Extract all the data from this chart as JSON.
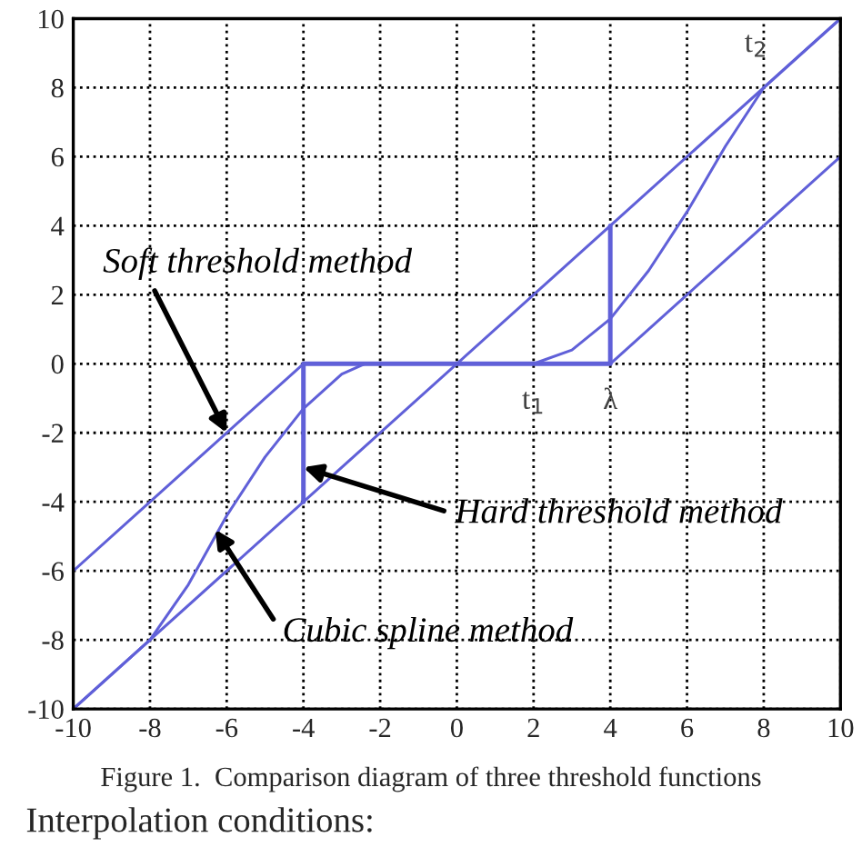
{
  "chart_data": {
    "type": "line",
    "series": [
      {
        "color": "#6060d8",
        "x": [
          -10,
          10
        ],
        "values": [
          -10,
          10
        ]
      },
      {
        "color": "#6060d8",
        "x": [
          -10,
          -4,
          0,
          4,
          10
        ],
        "values": [
          -6,
          0,
          null,
          0,
          6
        ]
      },
      {
        "color": "#6060d8",
        "x": [
          -4,
          -4,
          4,
          4
        ],
        "values": [
          -4,
          0,
          0,
          4
        ]
      },
      {
        "color": "#6060d8",
        "x": [
          -10,
          -8,
          -7,
          -6,
          -5,
          -4,
          -3,
          -2.4,
          2,
          3,
          4,
          5,
          6,
          7,
          8,
          9,
          10
        ],
        "values": [
          -10,
          -8,
          -6.4,
          -4.4,
          -2.7,
          -1.3,
          -0.3,
          0,
          0,
          0.4,
          1.3,
          2.7,
          4.4,
          6.3,
          8,
          9,
          10
        ]
      }
    ],
    "xlim": [
      -10,
      10
    ],
    "ylim": [
      -10,
      10
    ],
    "xticks": [
      -10,
      -8,
      -6,
      -4,
      -2,
      0,
      2,
      4,
      6,
      8,
      10
    ],
    "yticks": [
      -10,
      -8,
      -6,
      -4,
      -2,
      0,
      2,
      4,
      6,
      8,
      10
    ],
    "grid": true,
    "legend": false,
    "marker": "none",
    "line_style": "solid",
    "annotations": [
      {
        "text": "Soft threshold method",
        "x": -6,
        "y": -2
      },
      {
        "text": "Hard threshold method",
        "x": -4,
        "y": -3
      },
      {
        "text": "Cubic spline method",
        "x": -6.3,
        "y": -4.8
      },
      {
        "text": "t$_{1}$",
        "x": 2,
        "y": 0
      },
      {
        "text": "λ",
        "x": 4,
        "y": 0
      },
      {
        "text": "t$_{2}$",
        "x": 8,
        "y": 8
      },
      "Figure 1.  Comparison diagram of three threshold functions",
      "Interpolation conditions:"
    ]
  }
}
